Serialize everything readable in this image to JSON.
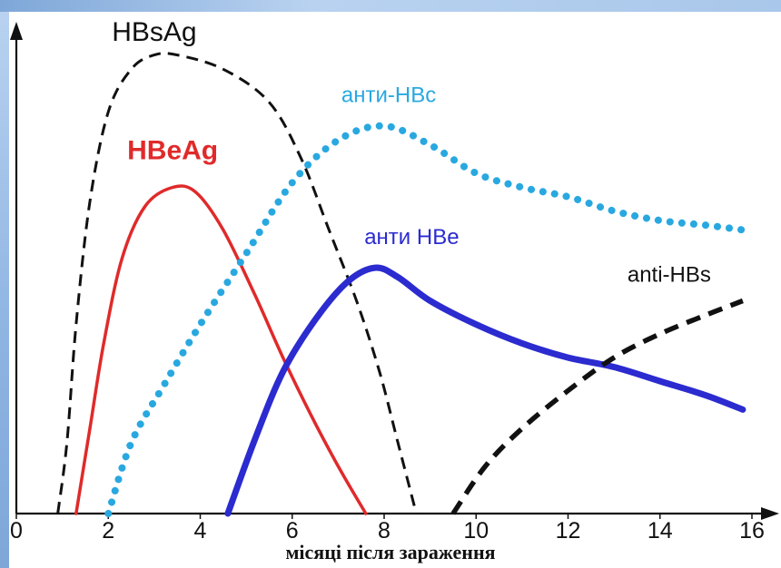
{
  "chart_data": {
    "type": "line",
    "xlabel": "місяці після зараження",
    "ylabel": "",
    "xlim": [
      0,
      16
    ],
    "ylim": [
      0,
      100
    ],
    "x_ticks": [
      0,
      2,
      4,
      6,
      8,
      10,
      12,
      14,
      16
    ],
    "grid": false,
    "legend": "labels placed next to curves",
    "series": [
      {
        "name": "HBsAg",
        "color": "#111111",
        "style": "dashed",
        "points": [
          [
            0.9,
            0
          ],
          [
            1.1,
            15
          ],
          [
            1.3,
            40
          ],
          [
            1.6,
            66
          ],
          [
            2.0,
            85
          ],
          [
            2.5,
            94
          ],
          [
            3.0,
            97
          ],
          [
            3.5,
            97
          ],
          [
            4.5,
            94
          ],
          [
            5.5,
            87
          ],
          [
            6.2,
            75
          ],
          [
            6.8,
            60
          ],
          [
            7.4,
            45
          ],
          [
            7.9,
            30
          ],
          [
            8.3,
            15
          ],
          [
            8.7,
            0
          ]
        ]
      },
      {
        "name": "HBeAg",
        "color": "#e02a2a",
        "style": "solid",
        "points": [
          [
            1.3,
            0
          ],
          [
            1.6,
            18
          ],
          [
            1.9,
            36
          ],
          [
            2.3,
            54
          ],
          [
            2.8,
            65
          ],
          [
            3.4,
            69
          ],
          [
            3.9,
            68
          ],
          [
            4.5,
            60
          ],
          [
            5.2,
            46
          ],
          [
            5.8,
            33
          ],
          [
            6.4,
            21
          ],
          [
            7.0,
            10
          ],
          [
            7.6,
            0
          ]
        ]
      },
      {
        "name": "анти-HBc",
        "color": "#29a8e0",
        "style": "dotted",
        "points": [
          [
            2.0,
            0
          ],
          [
            2.5,
            15
          ],
          [
            3.2,
            27
          ],
          [
            4.0,
            40
          ],
          [
            5.0,
            55
          ],
          [
            6.0,
            70
          ],
          [
            7.0,
            79
          ],
          [
            8.0,
            82
          ],
          [
            9.0,
            78
          ],
          [
            10.0,
            72
          ],
          [
            11.0,
            69
          ],
          [
            12.0,
            67
          ],
          [
            13.0,
            64
          ],
          [
            14.0,
            62
          ],
          [
            15.0,
            61
          ],
          [
            15.8,
            60
          ]
        ]
      },
      {
        "name": "анти HBe",
        "color": "#2b2bd0",
        "style": "solid",
        "points": [
          [
            4.6,
            0
          ],
          [
            5.2,
            16
          ],
          [
            5.8,
            30
          ],
          [
            6.5,
            41
          ],
          [
            7.2,
            49
          ],
          [
            7.8,
            52
          ],
          [
            8.3,
            50
          ],
          [
            9.0,
            45
          ],
          [
            10.0,
            40
          ],
          [
            11.0,
            36
          ],
          [
            12.0,
            33
          ],
          [
            13.0,
            31
          ],
          [
            14.0,
            28
          ],
          [
            15.0,
            25
          ],
          [
            15.8,
            22
          ]
        ]
      },
      {
        "name": "anti-HBs",
        "color": "#111111",
        "style": "dashed",
        "points": [
          [
            9.5,
            0
          ],
          [
            10.2,
            10
          ],
          [
            11.0,
            18
          ],
          [
            12.0,
            26
          ],
          [
            13.0,
            33
          ],
          [
            14.0,
            38
          ],
          [
            15.0,
            42
          ],
          [
            15.8,
            45
          ]
        ]
      }
    ],
    "labels": [
      {
        "text": "HBsAg",
        "series": 0,
        "x": 3.0,
        "y": 100,
        "color": "#111111",
        "bold": false,
        "size": 30
      },
      {
        "text": "HBeAg",
        "series": 1,
        "x": 3.4,
        "y": 75,
        "color": "#e02a2a",
        "bold": true,
        "size": 30
      },
      {
        "text": "анти-HBc",
        "series": 2,
        "x": 8.1,
        "y": 87,
        "color": "#29a8e0",
        "bold": false,
        "size": 24
      },
      {
        "text": "анти HBe",
        "series": 3,
        "x": 8.6,
        "y": 57,
        "color": "#2b2bd0",
        "bold": false,
        "size": 24
      },
      {
        "text": "anti-HBs",
        "series": 4,
        "x": 14.2,
        "y": 49,
        "color": "#111111",
        "bold": false,
        "size": 24
      }
    ]
  }
}
